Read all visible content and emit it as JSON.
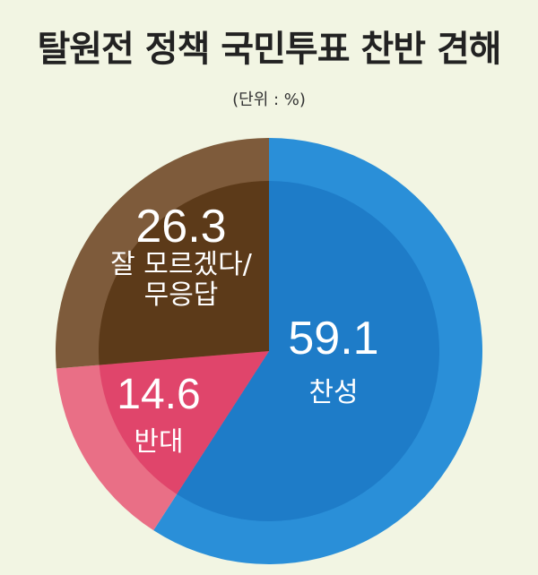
{
  "chart_data": {
    "type": "pie",
    "title": "탈원전 정책 국민투표 찬반 견해",
    "subtitle": "(단위 : %)",
    "slices": [
      {
        "label": "찬성",
        "value": 59.1,
        "color": "#2a8fd8",
        "inner_color": "#1e7cc8"
      },
      {
        "label": "반대",
        "value": 14.6,
        "color": "#e96f86",
        "inner_color": "#e0456b"
      },
      {
        "label": "잘 모르겠다/\n무응답",
        "value": 26.3,
        "color": "#7e5b3b",
        "inner_color": "#5c3a19"
      }
    ]
  }
}
